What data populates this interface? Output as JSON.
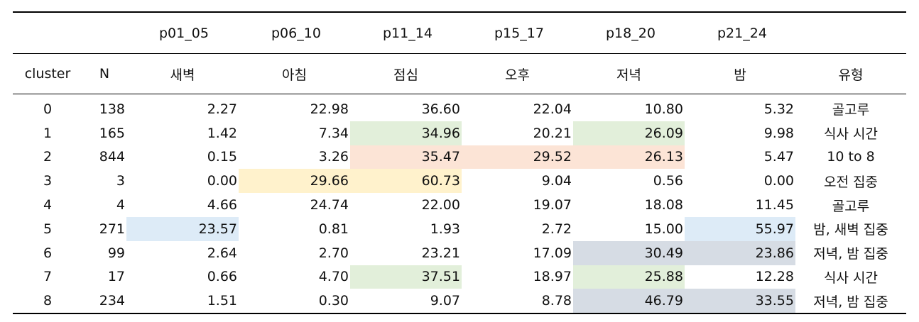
{
  "table": {
    "period_headers": [
      "p01_05",
      "p06_10",
      "p11_14",
      "p15_17",
      "p18_20",
      "p21_24"
    ],
    "column_headers": [
      "cluster",
      "N",
      "새벽",
      "아침",
      "점심",
      "오후",
      "저녁",
      "밤",
      "유형"
    ],
    "colors": {
      "green": "#e2efda",
      "orange": "#fce4d6",
      "yellow": "#fff2cc",
      "blue": "#ddebf7",
      "gray": "#d6dce4"
    },
    "rows": [
      {
        "cells": [
          "0",
          "138",
          "2.27",
          "22.98",
          "36.60",
          "22.04",
          "10.80",
          "5.32",
          "골고루"
        ],
        "fills": [
          null,
          null,
          null,
          null,
          null,
          null,
          null,
          null,
          null
        ]
      },
      {
        "cells": [
          "1",
          "165",
          "1.42",
          "7.34",
          "34.96",
          "20.21",
          "26.09",
          "9.98",
          "식사 시간"
        ],
        "fills": [
          null,
          null,
          null,
          null,
          "#e2efda",
          null,
          "#e2efda",
          null,
          null
        ]
      },
      {
        "cells": [
          "2",
          "844",
          "0.15",
          "3.26",
          "35.47",
          "29.52",
          "26.13",
          "5.47",
          "10 to 8"
        ],
        "fills": [
          null,
          null,
          null,
          null,
          "#fce4d6",
          "#fce4d6",
          "#fce4d6",
          null,
          null
        ]
      },
      {
        "cells": [
          "3",
          "3",
          "0.00",
          "29.66",
          "60.73",
          "9.04",
          "0.56",
          "0.00",
          "오전 집중"
        ],
        "fills": [
          null,
          null,
          null,
          "#fff2cc",
          "#fff2cc",
          null,
          null,
          null,
          null
        ]
      },
      {
        "cells": [
          "4",
          "4",
          "4.66",
          "24.74",
          "22.00",
          "19.07",
          "18.08",
          "11.45",
          "골고루"
        ],
        "fills": [
          null,
          null,
          null,
          null,
          null,
          null,
          null,
          null,
          null
        ]
      },
      {
        "cells": [
          "5",
          "271",
          "23.57",
          "0.81",
          "1.93",
          "2.72",
          "15.00",
          "55.97",
          "밤, 새벽 집중"
        ],
        "fills": [
          null,
          null,
          "#ddebf7",
          null,
          null,
          null,
          null,
          "#ddebf7",
          null
        ]
      },
      {
        "cells": [
          "6",
          "99",
          "2.64",
          "2.70",
          "23.21",
          "17.09",
          "30.49",
          "23.86",
          "저녁, 밤 집중"
        ],
        "fills": [
          null,
          null,
          null,
          null,
          null,
          null,
          "#d6dce4",
          "#d6dce4",
          null
        ]
      },
      {
        "cells": [
          "7",
          "17",
          "0.66",
          "4.70",
          "37.51",
          "18.97",
          "25.88",
          "12.28",
          "식사 시간"
        ],
        "fills": [
          null,
          null,
          null,
          null,
          "#e2efda",
          null,
          "#e2efda",
          null,
          null
        ]
      },
      {
        "cells": [
          "8",
          "234",
          "1.51",
          "0.30",
          "9.07",
          "8.78",
          "46.79",
          "33.55",
          "저녁, 밤 집중"
        ],
        "fills": [
          null,
          null,
          null,
          null,
          null,
          null,
          "#d6dce4",
          "#d6dce4",
          null
        ]
      }
    ]
  }
}
